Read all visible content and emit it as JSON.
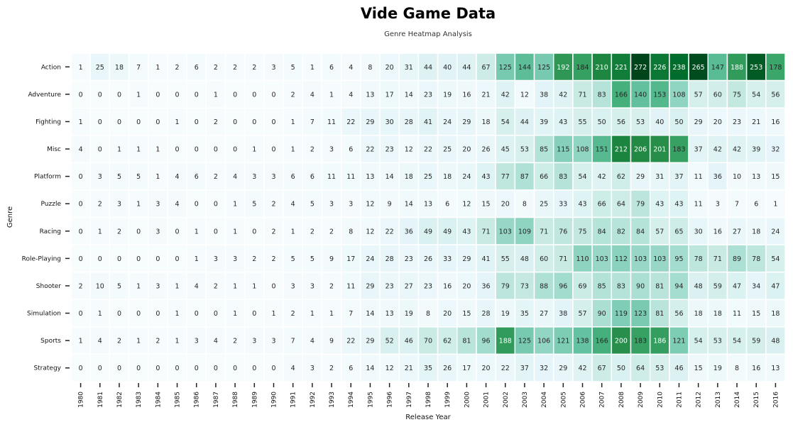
{
  "chart_data": {
    "type": "heatmap",
    "title": "Vide Game Data",
    "subtitle": "Genre Heatmap Analysis",
    "xlabel": "Release Year",
    "ylabel": "Genre",
    "colormap": "BuGn",
    "value_range": [
      0,
      272
    ],
    "x_categories": [
      "1980",
      "1981",
      "1982",
      "1983",
      "1984",
      "1985",
      "1986",
      "1987",
      "1988",
      "1989",
      "1990",
      "1991",
      "1992",
      "1993",
      "1994",
      "1995",
      "1996",
      "1997",
      "1998",
      "1999",
      "2000",
      "2001",
      "2002",
      "2003",
      "2004",
      "2005",
      "2006",
      "2007",
      "2008",
      "2009",
      "2010",
      "2011",
      "2012",
      "2013",
      "2014",
      "2015",
      "2016"
    ],
    "y_categories": [
      "Action",
      "Adventure",
      "Fighting",
      "Misc",
      "Platform",
      "Puzzle",
      "Racing",
      "Role-Playing",
      "Shooter",
      "Simulation",
      "Sports",
      "Strategy"
    ],
    "values": [
      [
        1,
        25,
        18,
        7,
        1,
        2,
        6,
        2,
        2,
        2,
        3,
        5,
        1,
        6,
        4,
        8,
        20,
        31,
        44,
        40,
        44,
        67,
        125,
        144,
        125,
        192,
        184,
        210,
        221,
        272,
        226,
        238,
        265,
        147,
        188,
        253,
        178
      ],
      [
        0,
        0,
        0,
        1,
        0,
        0,
        0,
        1,
        0,
        0,
        0,
        2,
        4,
        1,
        4,
        13,
        17,
        14,
        23,
        19,
        16,
        21,
        42,
        12,
        38,
        42,
        71,
        83,
        166,
        140,
        153,
        108,
        57,
        60,
        75,
        54,
        56
      ],
      [
        1,
        0,
        0,
        0,
        0,
        1,
        0,
        2,
        0,
        0,
        0,
        1,
        7,
        11,
        22,
        29,
        30,
        28,
        41,
        24,
        29,
        18,
        54,
        44,
        39,
        43,
        55,
        50,
        56,
        53,
        40,
        50,
        29,
        20,
        23,
        21,
        16
      ],
      [
        4,
        0,
        1,
        1,
        1,
        0,
        0,
        0,
        0,
        1,
        0,
        1,
        2,
        3,
        6,
        22,
        23,
        12,
        22,
        25,
        20,
        26,
        45,
        53,
        85,
        115,
        108,
        151,
        212,
        206,
        201,
        183,
        37,
        42,
        42,
        39,
        32
      ],
      [
        0,
        3,
        5,
        5,
        1,
        4,
        6,
        2,
        4,
        3,
        3,
        6,
        6,
        11,
        11,
        13,
        14,
        18,
        25,
        18,
        24,
        43,
        77,
        87,
        66,
        83,
        54,
        42,
        62,
        29,
        31,
        37,
        11,
        36,
        10,
        13,
        15
      ],
      [
        0,
        2,
        3,
        1,
        3,
        4,
        0,
        0,
        1,
        5,
        2,
        4,
        5,
        3,
        3,
        12,
        9,
        14,
        13,
        6,
        12,
        15,
        20,
        8,
        25,
        33,
        43,
        66,
        64,
        79,
        43,
        43,
        11,
        3,
        7,
        6,
        1
      ],
      [
        0,
        1,
        2,
        0,
        3,
        0,
        1,
        0,
        1,
        0,
        2,
        1,
        2,
        2,
        8,
        12,
        22,
        36,
        49,
        49,
        43,
        71,
        103,
        109,
        71,
        76,
        75,
        84,
        82,
        84,
        57,
        65,
        30,
        16,
        27,
        18,
        24
      ],
      [
        0,
        0,
        0,
        0,
        0,
        0,
        1,
        3,
        3,
        2,
        2,
        5,
        5,
        9,
        17,
        24,
        28,
        23,
        26,
        33,
        29,
        41,
        55,
        48,
        60,
        71,
        110,
        103,
        112,
        103,
        103,
        95,
        78,
        71,
        89,
        78,
        54
      ],
      [
        2,
        10,
        5,
        1,
        3,
        1,
        4,
        2,
        1,
        1,
        0,
        3,
        3,
        2,
        11,
        29,
        23,
        27,
        23,
        16,
        20,
        36,
        79,
        73,
        88,
        96,
        69,
        85,
        83,
        90,
        81,
        94,
        48,
        59,
        47,
        34,
        47
      ],
      [
        0,
        1,
        0,
        0,
        0,
        1,
        0,
        0,
        1,
        0,
        1,
        2,
        1,
        1,
        7,
        14,
        13,
        19,
        8,
        20,
        15,
        28,
        19,
        35,
        27,
        38,
        57,
        90,
        119,
        123,
        81,
        56,
        18,
        18,
        11,
        15,
        18
      ],
      [
        1,
        4,
        2,
        1,
        2,
        1,
        3,
        4,
        2,
        3,
        3,
        7,
        4,
        9,
        22,
        29,
        52,
        46,
        70,
        62,
        81,
        96,
        188,
        125,
        106,
        121,
        138,
        166,
        200,
        183,
        186,
        121,
        54,
        53,
        54,
        59,
        48
      ],
      [
        0,
        0,
        0,
        0,
        0,
        0,
        0,
        0,
        0,
        0,
        0,
        4,
        3,
        2,
        6,
        14,
        12,
        21,
        35,
        26,
        17,
        20,
        22,
        37,
        32,
        29,
        42,
        67,
        50,
        64,
        53,
        46,
        15,
        19,
        8,
        16,
        13
      ]
    ],
    "annotated": true,
    "grid": false,
    "legend": "none"
  }
}
